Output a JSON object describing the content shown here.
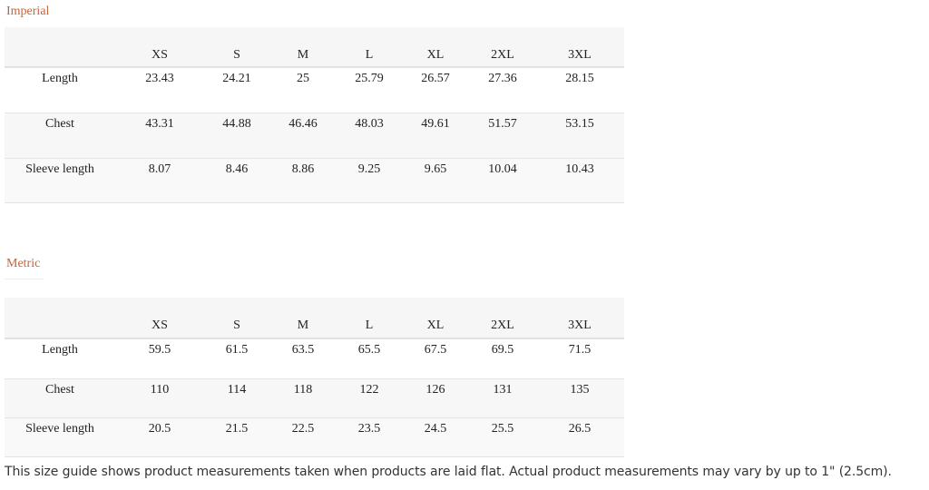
{
  "sections": [
    {
      "title": "Imperial",
      "header": [
        "XS",
        "S",
        "M",
        "L",
        "XL",
        "2XL",
        "3XL"
      ],
      "rows": [
        {
          "label": "Length",
          "values": [
            "23.43",
            "24.21",
            "25",
            "25.79",
            "26.57",
            "27.36",
            "28.15"
          ]
        },
        {
          "label": "Chest",
          "values": [
            "43.31",
            "44.88",
            "46.46",
            "48.03",
            "49.61",
            "51.57",
            "53.15"
          ]
        },
        {
          "label": "Sleeve length",
          "values": [
            "8.07",
            "8.46",
            "8.86",
            "9.25",
            "9.65",
            "10.04",
            "10.43"
          ]
        }
      ]
    },
    {
      "title": "Metric",
      "header": [
        "XS",
        "S",
        "M",
        "L",
        "XL",
        "2XL",
        "3XL"
      ],
      "rows": [
        {
          "label": "Length",
          "values": [
            "59.5",
            "61.5",
            "63.5",
            "65.5",
            "67.5",
            "69.5",
            "71.5"
          ]
        },
        {
          "label": "Chest",
          "values": [
            "110",
            "114",
            "118",
            "122",
            "126",
            "131",
            "135"
          ]
        },
        {
          "label": "Sleeve length",
          "values": [
            "20.5",
            "21.5",
            "22.5",
            "23.5",
            "24.5",
            "25.5",
            "26.5"
          ]
        }
      ]
    }
  ],
  "note": "This size guide shows product measurements taken when products are laid flat. Actual product measurements may vary by up to 1\" (2.5cm)."
}
